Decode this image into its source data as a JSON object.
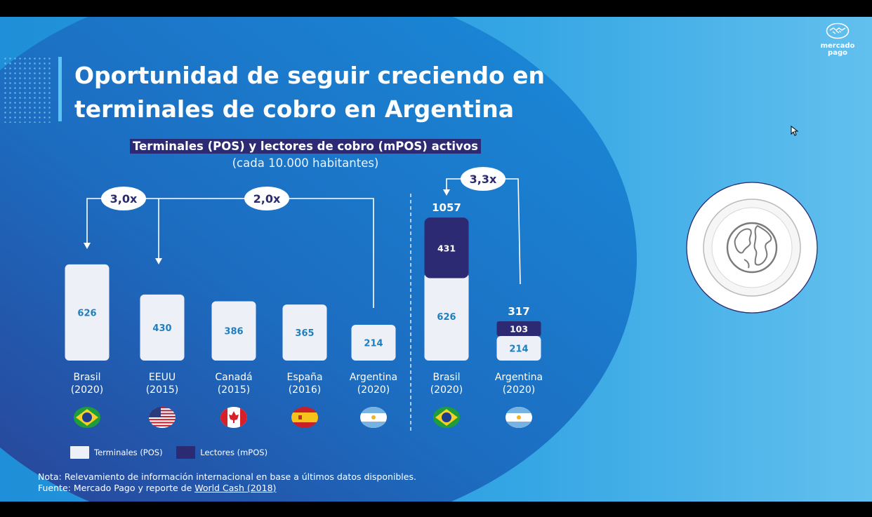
{
  "title": {
    "line1": "Oportunidad de seguir creciendo en",
    "line2": "terminales de cobro en Argentina"
  },
  "logo": {
    "text_line1": "mercado",
    "text_line2": "pago"
  },
  "chart_data": {
    "type": "bar",
    "title": "Terminales (POS) y lectores de cobro (mPOS) activos",
    "subtitle": "(cada 10.000 habitantes)",
    "categories": [
      {
        "country": "Brasil",
        "year": "(2020)",
        "flag": "brazil"
      },
      {
        "country": "EEUU",
        "year": "(2015)",
        "flag": "usa"
      },
      {
        "country": "Canadá",
        "year": "(2015)",
        "flag": "canada"
      },
      {
        "country": "España",
        "year": "(2016)",
        "flag": "spain"
      },
      {
        "country": "Argentina",
        "year": "(2020)",
        "flag": "argentina"
      },
      {
        "country": "Brasil",
        "year": "(2020)",
        "flag": "brazil"
      },
      {
        "country": "Argentina",
        "year": "(2020)",
        "flag": "argentina"
      }
    ],
    "series": [
      {
        "name": "Terminales (POS)",
        "values": [
          626,
          430,
          386,
          365,
          214,
          626,
          214
        ],
        "color": "#eef0f7"
      },
      {
        "name": "Lectores (mPOS)",
        "values": [
          null,
          null,
          null,
          null,
          null,
          431,
          103
        ],
        "color": "#2b2a72"
      }
    ],
    "totals": [
      {
        "index": 5,
        "label": "1057"
      },
      {
        "index": 6,
        "label": "317"
      }
    ],
    "comparisons": [
      {
        "label": "3,0x",
        "from": 4,
        "to": 0
      },
      {
        "label": "2,0x",
        "from": 4,
        "to": 1
      },
      {
        "label": "3,3x",
        "from": 6,
        "to": 5
      }
    ],
    "legend_position": "bottom-left",
    "grid": false,
    "label_color": "#1e7fbf"
  },
  "legend": {
    "items": [
      {
        "label": "Terminales (POS)",
        "color": "#eef0f7"
      },
      {
        "label": "Lectores (mPOS)",
        "color": "#2b2a72"
      }
    ]
  },
  "note": {
    "line1": "Nota: Relevamiento de información internacional en base a últimos datos disponibles.",
    "line2_prefix": "Fuente: Mercado Pago y reporte de ",
    "line2_link": "World Cash (2018)"
  },
  "icons": {
    "globe": "globe-icon",
    "cursor": "cursor-icon"
  },
  "colors": {
    "background": "#1e8fd8",
    "dark_navy": "#2b2a72",
    "accent": "#5cc6f2"
  }
}
